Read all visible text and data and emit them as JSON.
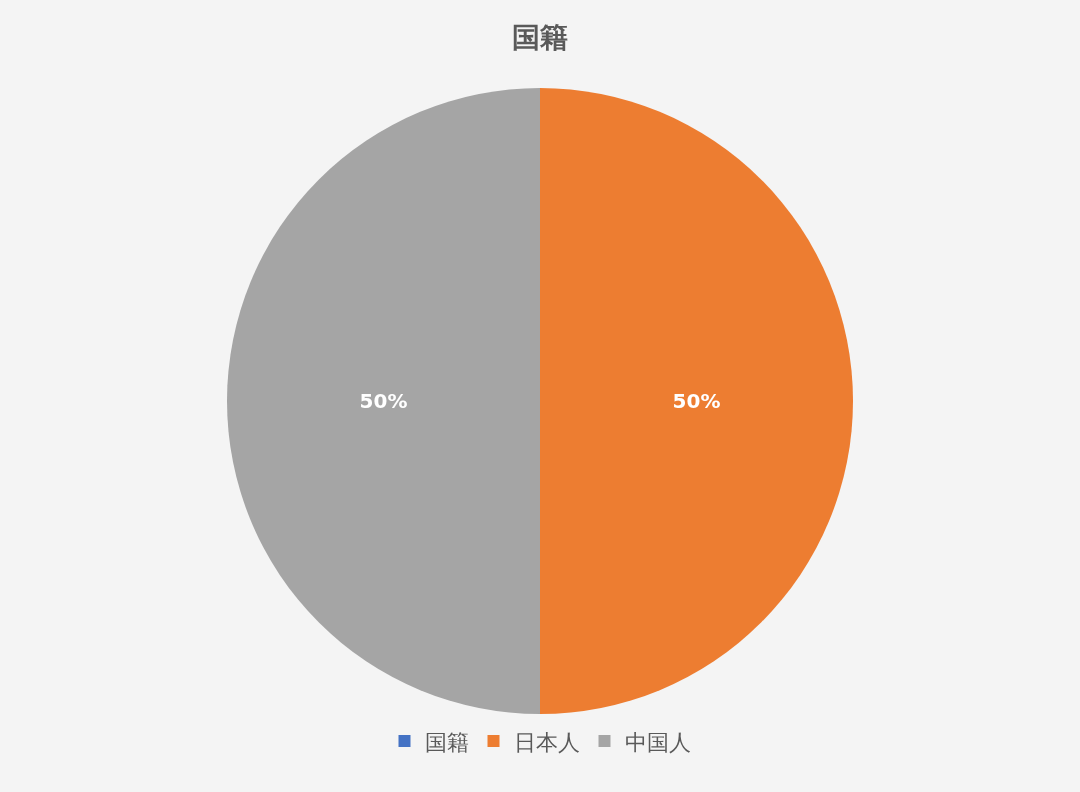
{
  "chart_data": {
    "type": "pie",
    "title": "国籍",
    "categories": [
      "国籍",
      "日本人",
      "中国人"
    ],
    "values": [
      0,
      50,
      50
    ],
    "colors": [
      "#4472c4",
      "#ed7d31",
      "#a5a5a5"
    ],
    "value_labels": [
      null,
      "50%",
      "50%"
    ],
    "legend": "bottom"
  }
}
